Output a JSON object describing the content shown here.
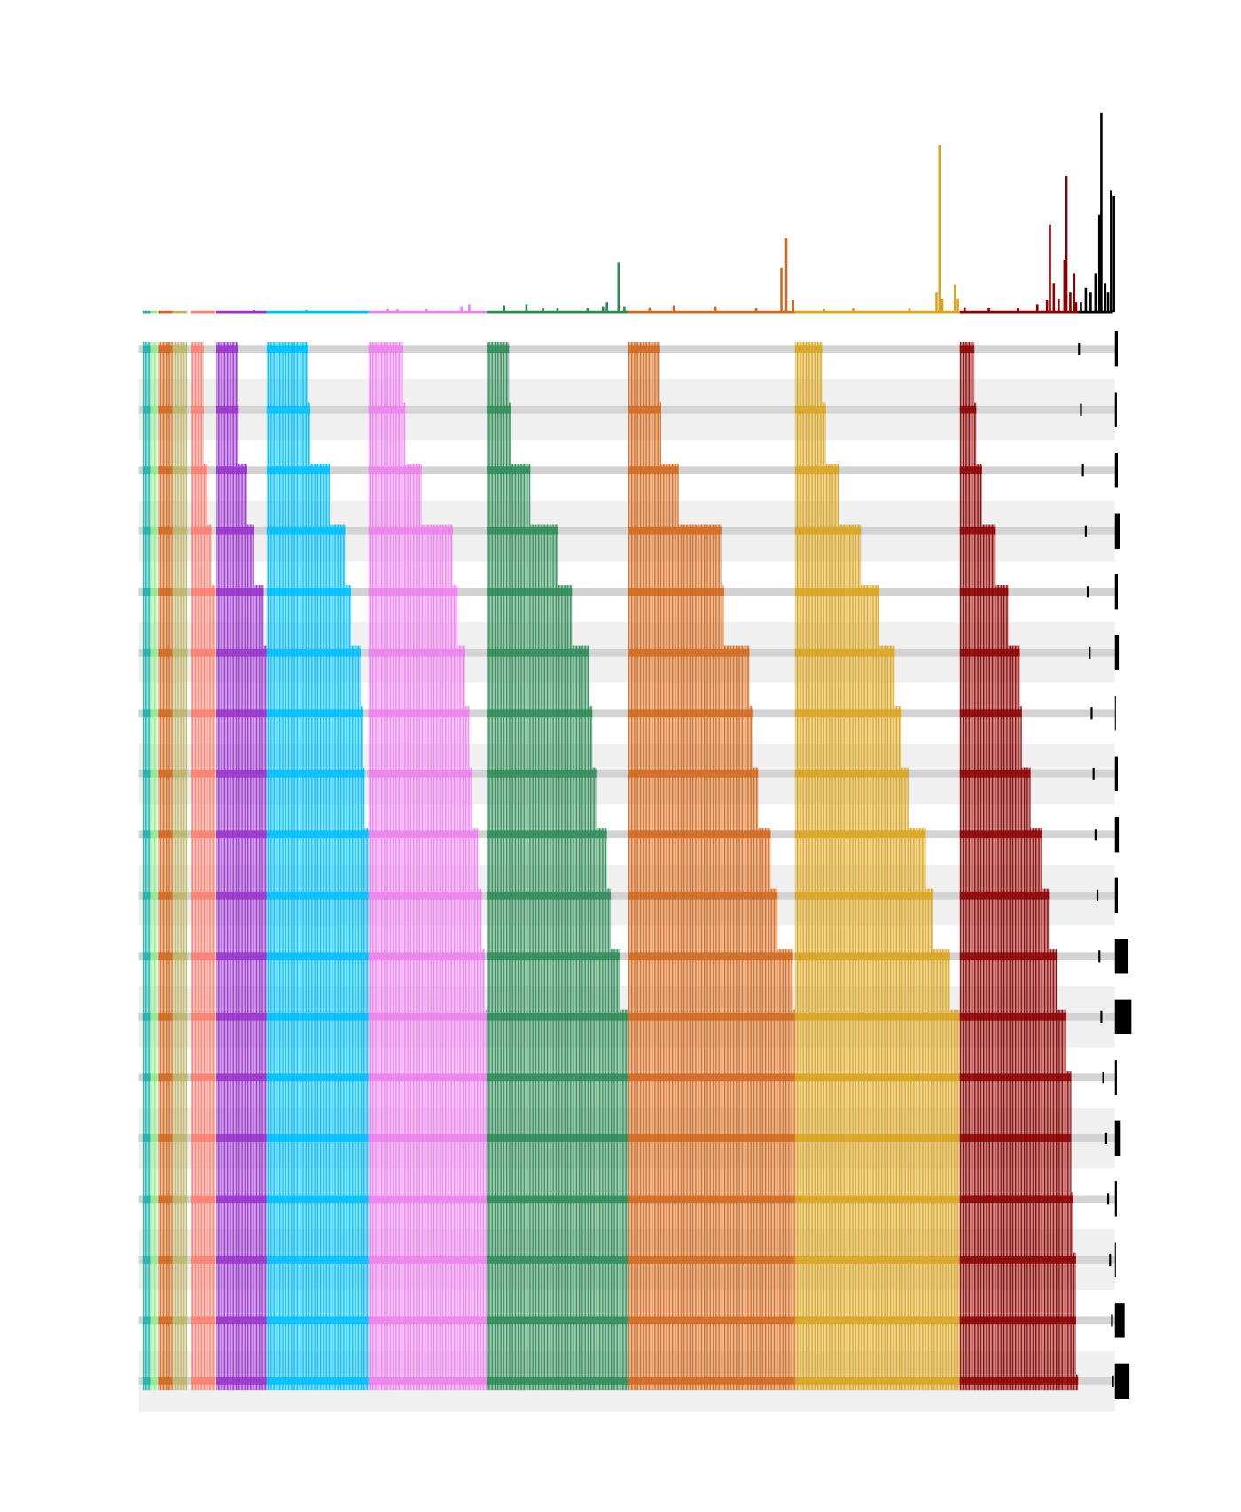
{
  "chart_data": {
    "type": "upset",
    "xlim": [
      0,
      1007
    ],
    "ylim": [
      0,
      210
    ],
    "size_lim": [
      0,
      20
    ],
    "groups": [
      {
        "color": "#20b2aa",
        "start": 4,
        "ends": [
          12,
          12,
          12,
          12,
          12,
          12,
          12,
          12,
          12,
          12,
          12,
          12,
          12,
          12,
          12,
          12,
          12,
          12
        ],
        "spikes_x": [],
        "spikes": []
      },
      {
        "color": "#90ee90",
        "start": 12,
        "ends": [
          19,
          19,
          19,
          19,
          19,
          19,
          19,
          19,
          19,
          19,
          19,
          19,
          19,
          19,
          19,
          19,
          19,
          19
        ],
        "spikes_x": [],
        "spikes": []
      },
      {
        "color": "#d2691e",
        "start": 20,
        "ends": [
          35,
          35,
          35,
          35,
          35,
          35,
          35,
          35,
          35,
          35,
          35,
          35,
          35,
          35,
          35,
          35,
          35,
          35
        ],
        "spikes_x": [],
        "spikes": []
      },
      {
        "color": "#bdb76b",
        "start": 35,
        "ends": [
          50,
          50,
          50,
          50,
          50,
          50,
          50,
          50,
          50,
          50,
          50,
          50,
          50,
          50,
          50,
          50,
          50,
          50
        ],
        "spikes_x": [],
        "spikes": []
      },
      {
        "color": "#fa8072",
        "start": 54,
        "ends": [
          67,
          67,
          71,
          75,
          79,
          79,
          79,
          79,
          79,
          79,
          79,
          79,
          79,
          79,
          79,
          79,
          79,
          79
        ],
        "spikes_x": [],
        "spikes": []
      },
      {
        "color": "#9932cc",
        "start": 80,
        "ends": [
          102,
          103,
          112,
          119,
          129,
          132,
          132,
          132,
          132,
          132,
          132,
          132,
          132,
          132,
          132,
          132,
          132,
          132
        ],
        "spikes_x": [
          119
        ],
        "spikes": [
          2
        ]
      },
      {
        "color": "#00bfff",
        "start": 132,
        "ends": [
          175,
          177,
          197,
          213,
          219,
          229,
          231,
          233,
          237,
          237,
          237,
          237,
          237,
          237,
          237,
          237,
          237,
          237
        ],
        "spikes_x": [
          173
        ],
        "spikes": [
          2
        ]
      },
      {
        "color": "#ee82ee",
        "start": 237,
        "ends": [
          273,
          275,
          292,
          324,
          329,
          337,
          341,
          344,
          350,
          354,
          357,
          359,
          359,
          359,
          359,
          359,
          359,
          359
        ],
        "spikes_x": [
          257,
          267,
          297,
          333,
          341
        ],
        "spikes": [
          3,
          3,
          3,
          6,
          8
        ]
      },
      {
        "color": "#2e8b57",
        "start": 359,
        "ends": [
          382,
          384,
          404,
          433,
          447,
          465,
          468,
          472,
          483,
          487,
          497,
          505,
          505,
          505,
          505,
          505,
          505,
          505
        ],
        "spikes_x": [
          377,
          400,
          417,
          432,
          463,
          479,
          483,
          495,
          501
        ],
        "spikes": [
          7,
          8,
          4,
          4,
          4,
          6,
          10,
          51,
          6
        ]
      },
      {
        "color": "#d2691e",
        "start": 505,
        "ends": [
          537,
          539,
          557,
          601,
          604,
          630,
          633,
          639,
          652,
          659,
          675,
          677,
          677,
          677,
          677,
          677,
          677,
          677
        ],
        "spikes_x": [
          527,
          552,
          595,
          637,
          663,
          668,
          675
        ],
        "spikes": [
          5,
          7,
          6,
          4,
          46,
          76,
          12
        ]
      },
      {
        "color": "#daa520",
        "start": 677,
        "ends": [
          705,
          709,
          722,
          745,
          764,
          780,
          787,
          794,
          812,
          819,
          837,
          847,
          847,
          847,
          847,
          847,
          847,
          847
        ],
        "spikes_x": [
          707,
          737,
          795,
          823,
          826,
          829,
          842,
          845
        ],
        "spikes": [
          3,
          4,
          4,
          20,
          172,
          14,
          28,
          14
        ]
      },
      {
        "color": "#8b0000",
        "start": 847,
        "ends": [
          862,
          864,
          870,
          884,
          897,
          909,
          911,
          920,
          932,
          939,
          947,
          957,
          962,
          962,
          964,
          967,
          967,
          969
        ],
        "spikes_x": [
          852,
          877,
          907,
          927,
          937,
          940,
          944,
          949,
          955,
          957,
          961,
          965,
          967
        ],
        "spikes": [
          5,
          4,
          4,
          8,
          12,
          90,
          30,
          14,
          54,
          140,
          20,
          40,
          10
        ]
      },
      {
        "color": "#000000",
        "start": 969,
        "ends": [
          970,
          972,
          974,
          977,
          979,
          981,
          983,
          985,
          987,
          989,
          991,
          993,
          995,
          998,
          1000,
          1002,
          1004,
          1005
        ],
        "spikes_x": [
          972,
          977,
          982,
          987,
          991,
          993,
          997,
          1000,
          1003,
          1006
        ],
        "spikes": [
          10,
          25,
          20,
          40,
          100,
          206,
          30,
          20,
          126,
          120
        ]
      }
    ],
    "set_sizes": [
      3,
      2,
      3,
      5,
      3,
      4,
      1,
      3,
      4,
      3,
      14,
      17,
      2,
      6,
      2,
      1,
      10,
      15
    ]
  }
}
